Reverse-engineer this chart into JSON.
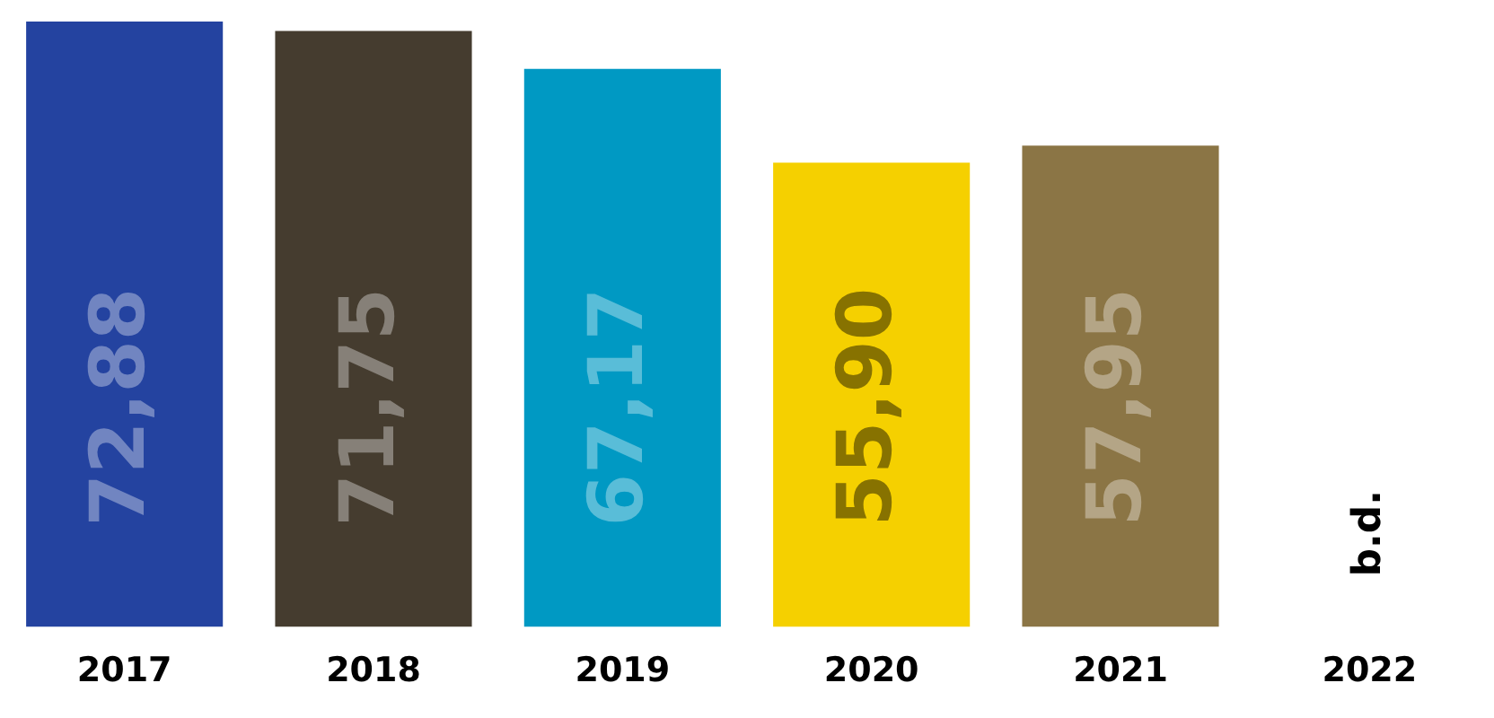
{
  "chart_data": {
    "type": "bar",
    "categories": [
      "2017",
      "2018",
      "2019",
      "2020",
      "2021",
      "2022"
    ],
    "values": [
      72.88,
      71.75,
      67.17,
      55.9,
      57.95,
      null
    ],
    "colors": [
      "#2443a0",
      "#453c2f",
      "#0099c3",
      "#f5d000",
      "#8b7545",
      "#ffffff"
    ],
    "value_labels": [
      "72,88",
      "71,75",
      "67,17",
      "55,90",
      "57,95",
      "b.d."
    ],
    "grid": false,
    "legend": false
  }
}
